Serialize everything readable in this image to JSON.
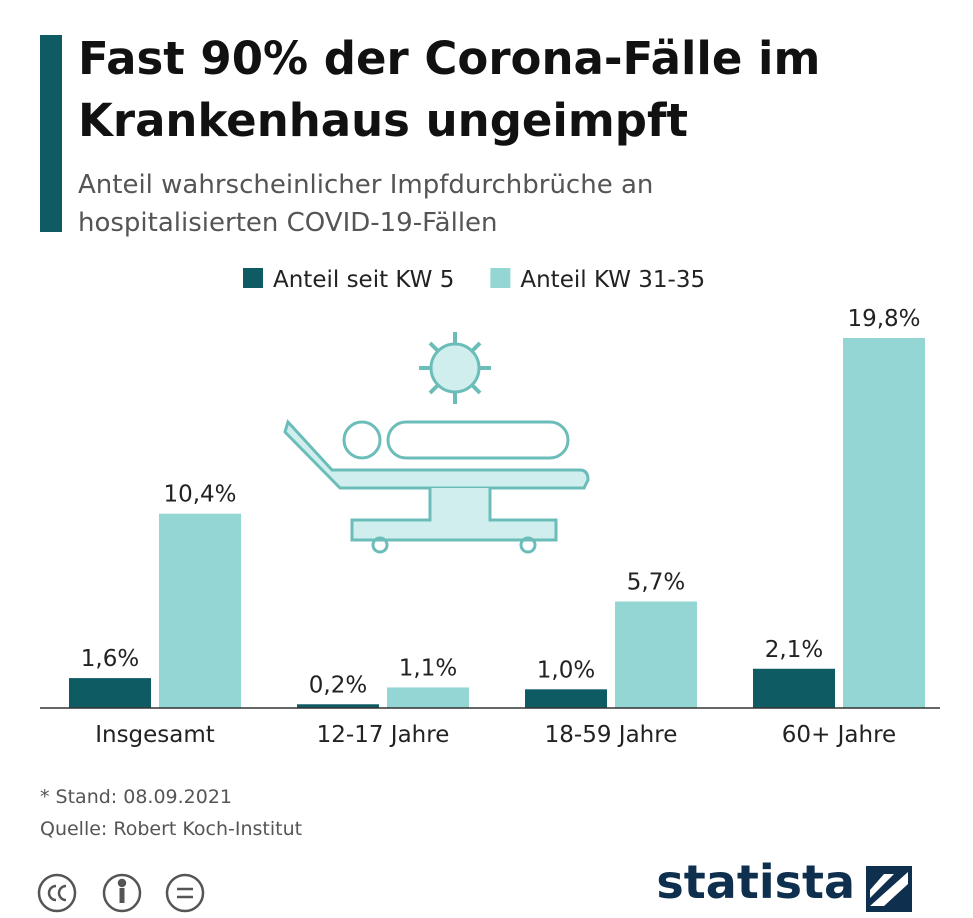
{
  "chart_data": {
    "type": "bar",
    "title": "Fast 90% der Corona-Fälle im Krankenhaus ungeimpft",
    "subtitle": "Anteil wahrscheinlicher Impfdurchbrüche an hospitalisierten COVID-19-Fällen",
    "categories": [
      "Insgesamt",
      "12-17 Jahre",
      "18-59 Jahre",
      "60+ Jahre"
    ],
    "series": [
      {
        "name": "Anteil seit KW 5",
        "color": "#0f5b63",
        "values": [
          1.6,
          0.2,
          1.0,
          2.1
        ],
        "value_labels": [
          "1,6%",
          "0,2%",
          "1,0%",
          "2,1%"
        ]
      },
      {
        "name": "Anteil KW 31-35",
        "color": "#93d6d3",
        "values": [
          10.4,
          1.1,
          5.7,
          19.8
        ],
        "value_labels": [
          "10,4%",
          "1,1%",
          "5,7%",
          "19,8%"
        ]
      }
    ],
    "legend": "top",
    "note": "* Stand: 08.09.2021",
    "source": "Quelle: Robert Koch-Institut"
  },
  "brand": "statista"
}
